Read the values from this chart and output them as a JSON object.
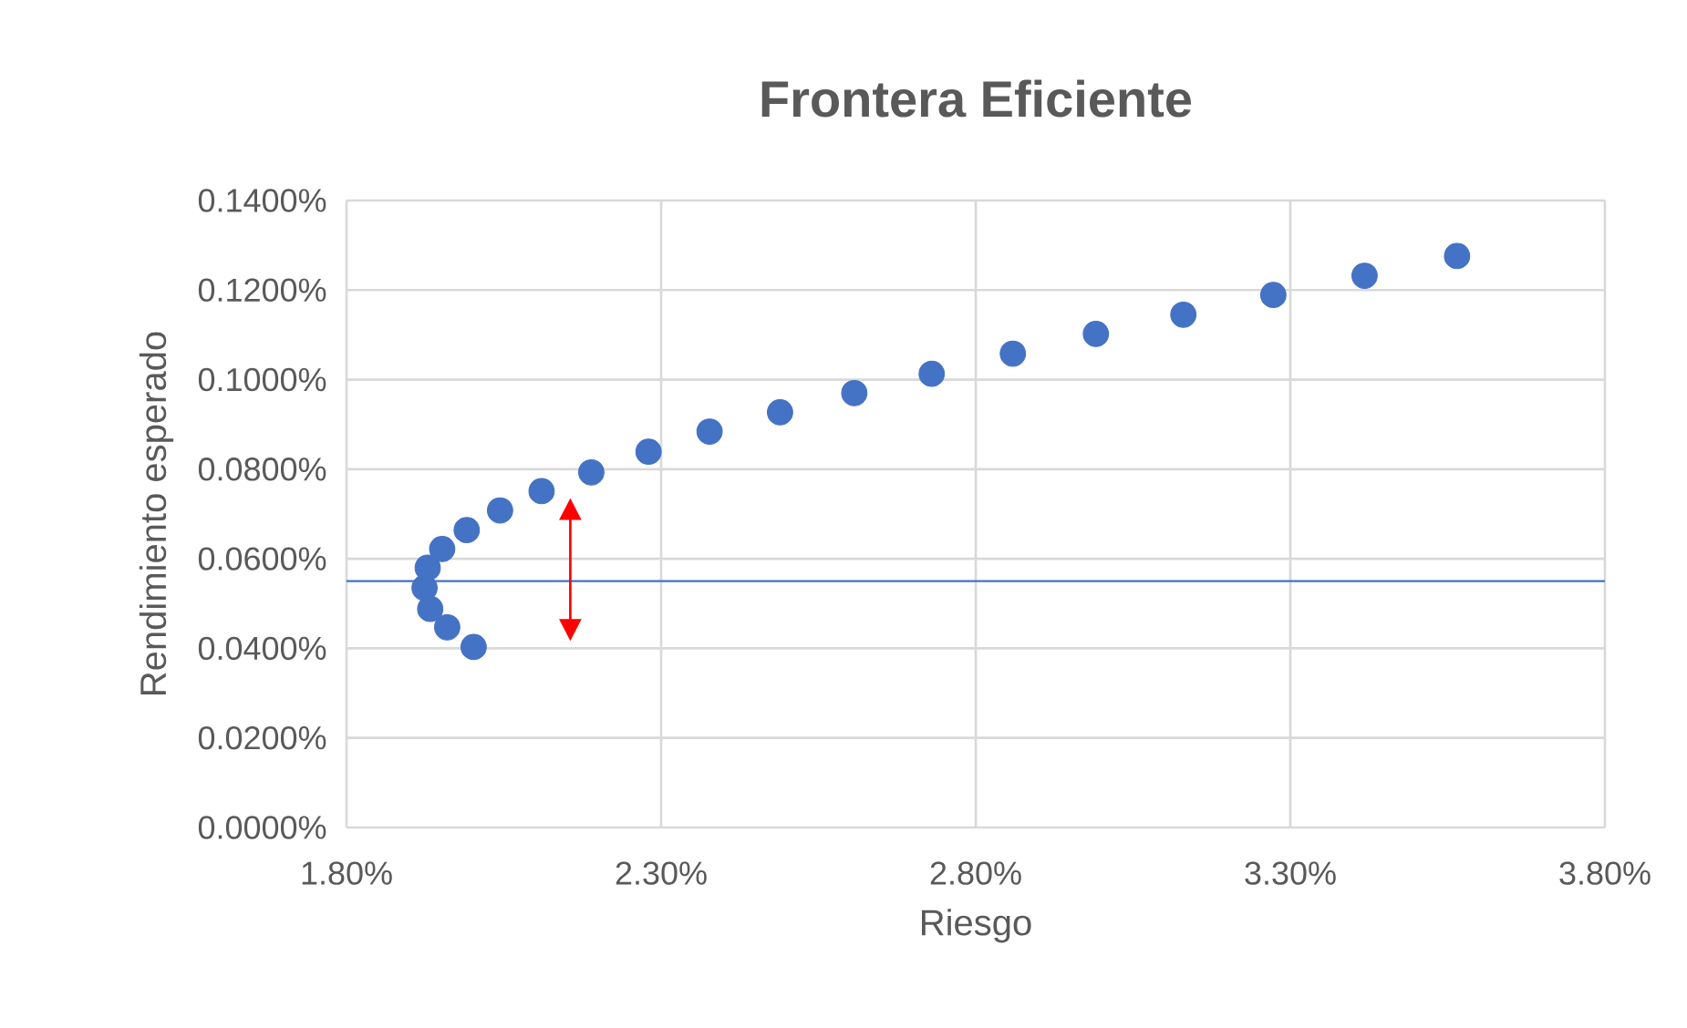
{
  "chart_data": {
    "type": "scatter",
    "title": "Frontera Eficiente",
    "xlabel": "Riesgo",
    "ylabel": "Rendimiento esperado",
    "series": [
      {
        "color": "#4472c4",
        "x": [
          2.002,
          1.96,
          1.933,
          1.924,
          1.929,
          1.952,
          1.991,
          2.044,
          2.11,
          2.189,
          2.28,
          2.377,
          2.489,
          2.607,
          2.73,
          2.859,
          2.991,
          3.13,
          3.273,
          3.418,
          3.565
        ],
        "values": [
          0.0403,
          0.0447,
          0.0488,
          0.0535,
          0.058,
          0.0622,
          0.0664,
          0.0708,
          0.0751,
          0.0793,
          0.0839,
          0.0884,
          0.0927,
          0.097,
          0.1013,
          0.1058,
          0.1102,
          0.1145,
          0.1189,
          0.1232,
          0.1276
        ]
      }
    ],
    "marker": "circle",
    "grid": true,
    "xlim": [
      1.8,
      3.8
    ],
    "xticks": [
      {
        "value": 1.8,
        "label": "1.80%"
      },
      {
        "value": 2.3,
        "label": "2.30%"
      },
      {
        "value": 2.8,
        "label": "2.80%"
      },
      {
        "value": 3.3,
        "label": "3.30%"
      },
      {
        "value": 3.8,
        "label": "3.80%"
      }
    ],
    "ylim": [
      0,
      0.14
    ],
    "yticks": [
      {
        "value": 0,
        "label": "0.0000%"
      },
      {
        "value": 0.02,
        "label": "0.0200%"
      },
      {
        "value": 0.04,
        "label": "0.0400%"
      },
      {
        "value": 0.06,
        "label": "0.0600%"
      },
      {
        "value": 0.08,
        "label": "0.0800%"
      },
      {
        "value": 0.1,
        "label": "0.1000%"
      },
      {
        "value": 0.12,
        "label": "0.1200%"
      },
      {
        "value": 0.14,
        "label": "0.1400%"
      }
    ],
    "ref_lines": [
      {
        "axis": "y",
        "value": 0.055,
        "color": "#4472c4"
      }
    ]
  }
}
